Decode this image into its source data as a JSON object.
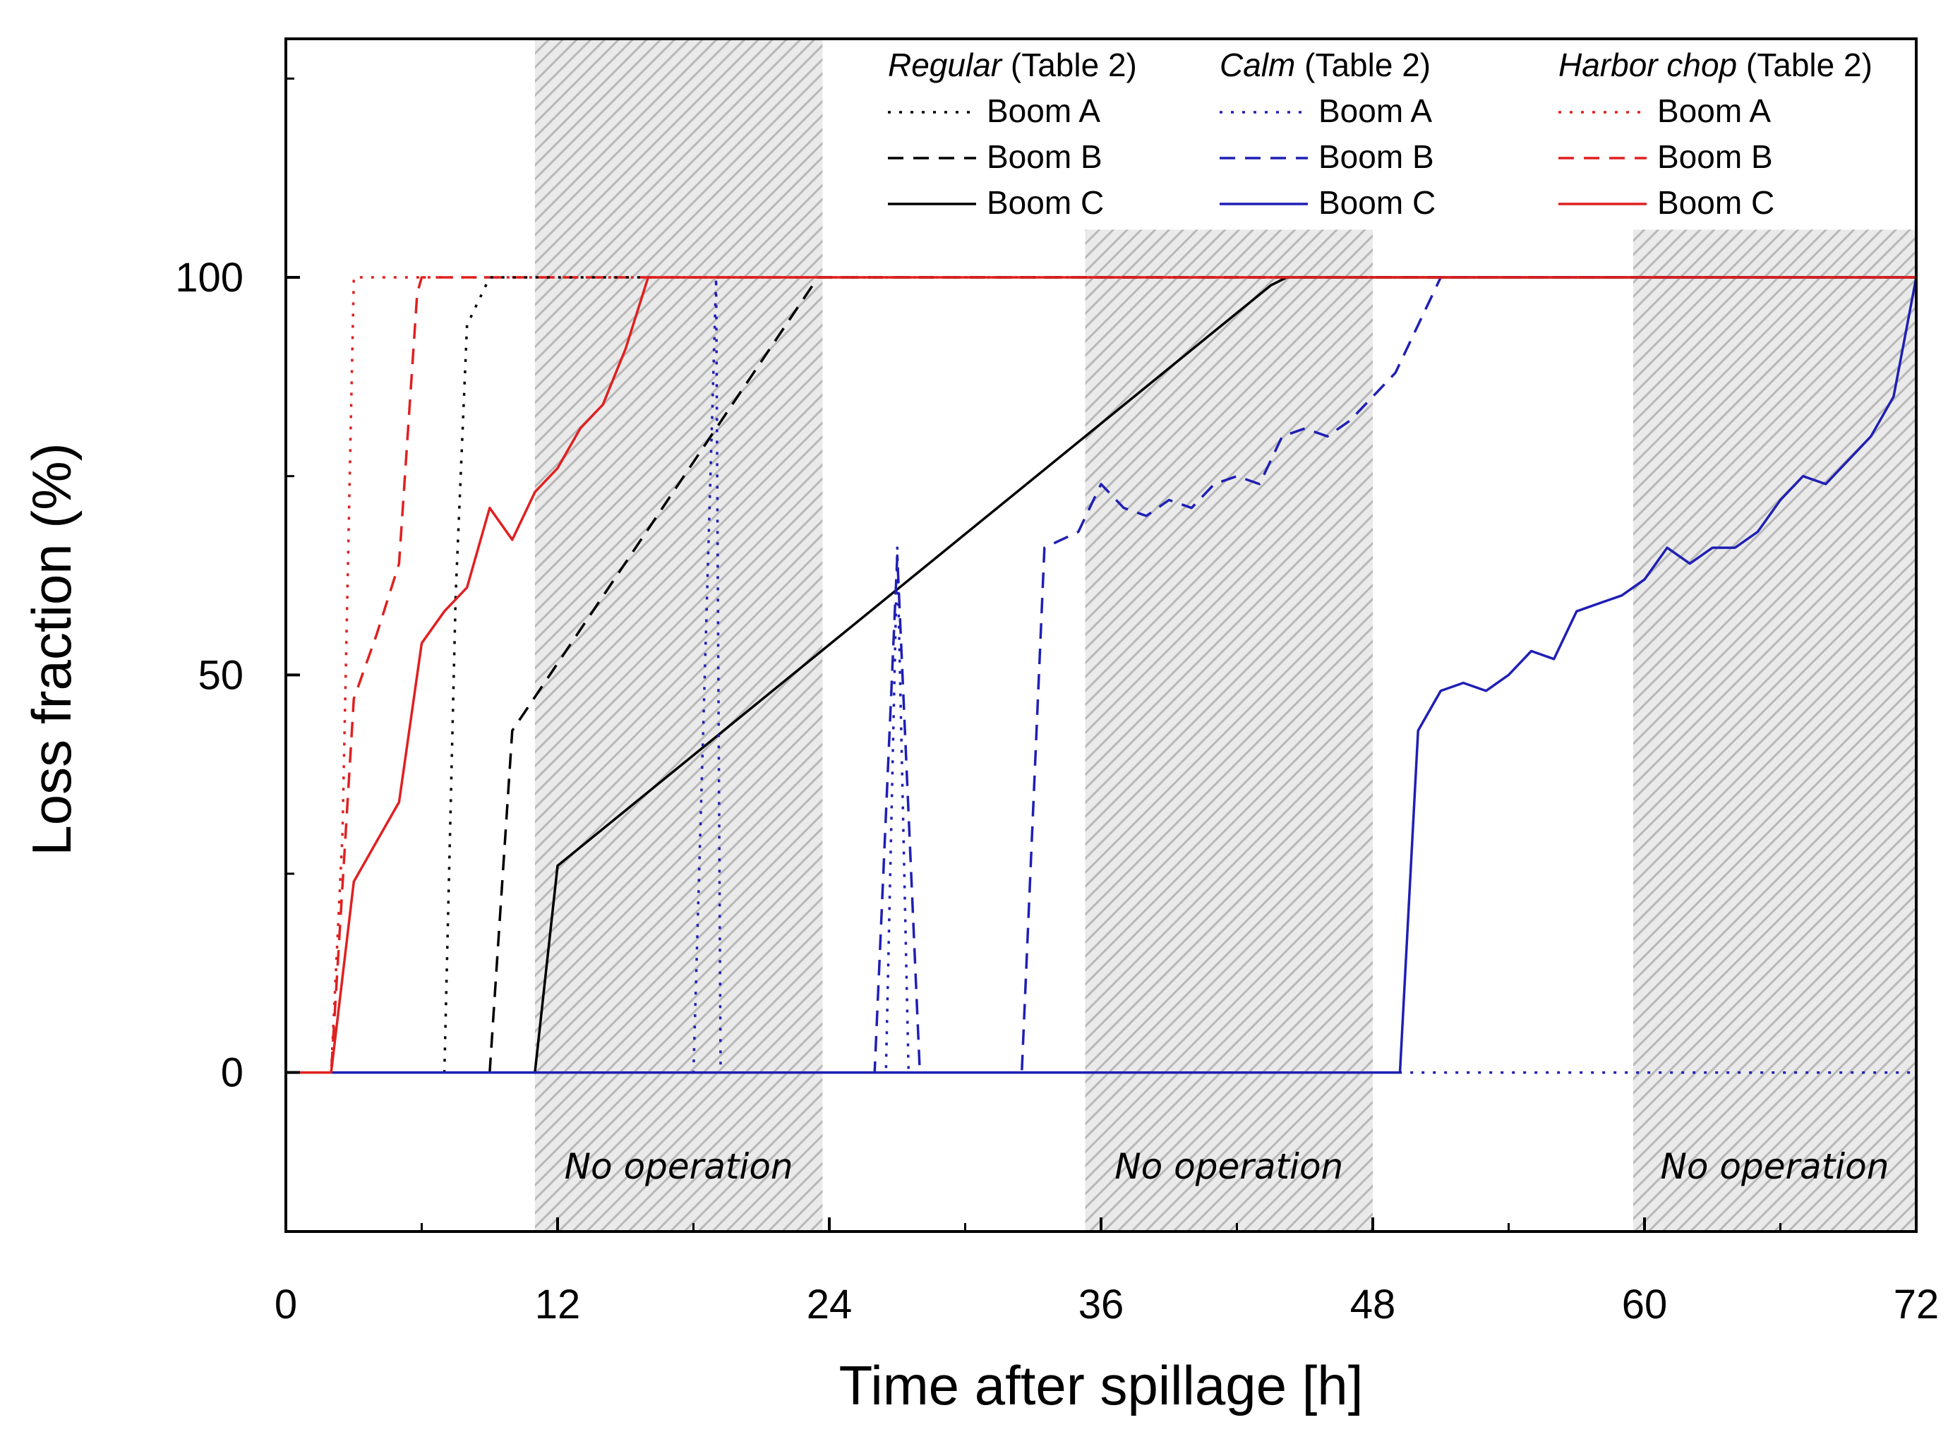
{
  "chart_data": {
    "type": "line",
    "xlabel": "Time after spillage [h]",
    "ylabel": "Loss fraction (%)",
    "xlim": [
      0,
      72
    ],
    "ylim": [
      -20,
      130
    ],
    "x_ticks": [
      0,
      12,
      24,
      36,
      48,
      60,
      72
    ],
    "y_ticks": [
      0,
      50,
      100
    ],
    "grid": false,
    "shaded_regions": [
      {
        "x_start": 11,
        "x_end": 23.7,
        "label": "No operation"
      },
      {
        "x_start": 35.3,
        "x_end": 48,
        "label": "No operation"
      },
      {
        "x_start": 59.5,
        "x_end": 72,
        "label": "No operation"
      }
    ],
    "legend": {
      "placement": "top-right",
      "groups": [
        {
          "name": "Regular",
          "suffix": " (Table 2)",
          "color": "#000000",
          "entries": [
            "Boom A",
            "Boom B",
            "Boom C"
          ]
        },
        {
          "name": "Calm",
          "suffix": " (Table 2)",
          "color": "#1f1fb4",
          "entries": [
            "Boom A",
            "Boom B",
            "Boom C"
          ]
        },
        {
          "name": "Harbor chop",
          "suffix": " (Table 2)",
          "color": "#e02020",
          "entries": [
            "Boom A",
            "Boom B",
            "Boom C"
          ]
        }
      ]
    },
    "series": [
      {
        "name": "Regular Boom A",
        "condition": "Regular",
        "boom": "A",
        "color": "#000000",
        "dash": "dot",
        "points": [
          [
            0,
            0
          ],
          [
            7,
            0
          ],
          [
            7.5,
            60
          ],
          [
            8,
            94
          ],
          [
            9,
            100
          ],
          [
            72,
            100
          ]
        ]
      },
      {
        "name": "Regular Boom B",
        "condition": "Regular",
        "boom": "B",
        "color": "#000000",
        "dash": "dash",
        "points": [
          [
            0,
            0
          ],
          [
            9,
            0
          ],
          [
            10,
            43
          ],
          [
            23.5,
            100
          ],
          [
            72,
            100
          ]
        ]
      },
      {
        "name": "Regular Boom C",
        "condition": "Regular",
        "boom": "C",
        "color": "#000000",
        "dash": "solid",
        "points": [
          [
            0,
            0
          ],
          [
            11,
            0
          ],
          [
            12,
            26
          ],
          [
            43.5,
            99
          ],
          [
            44.2,
            100
          ],
          [
            72,
            100
          ]
        ]
      },
      {
        "name": "Calm Boom A",
        "condition": "Calm",
        "boom": "A",
        "color": "#1f1fb4",
        "dash": "dot",
        "points": [
          [
            0,
            0
          ],
          [
            18,
            0
          ],
          [
            19,
            100
          ],
          [
            19.2,
            0
          ],
          [
            26.5,
            0
          ],
          [
            27,
            66
          ],
          [
            27.5,
            0
          ],
          [
            72,
            0
          ],
          [
            72,
            100
          ]
        ]
      },
      {
        "name": "Calm Boom B",
        "condition": "Calm",
        "boom": "B",
        "color": "#1f1fb4",
        "dash": "dash",
        "points": [
          [
            0,
            0
          ],
          [
            26,
            0
          ],
          [
            27,
            65
          ],
          [
            28,
            0
          ],
          [
            32.5,
            0
          ],
          [
            33.5,
            66
          ],
          [
            35,
            68
          ],
          [
            36,
            74
          ],
          [
            37,
            71
          ],
          [
            38,
            70
          ],
          [
            39,
            72
          ],
          [
            40,
            71
          ],
          [
            41,
            74
          ],
          [
            42,
            75
          ],
          [
            43,
            74
          ],
          [
            44,
            80
          ],
          [
            45,
            81
          ],
          [
            46,
            80
          ],
          [
            47,
            82
          ],
          [
            48,
            85
          ],
          [
            49,
            88
          ],
          [
            50,
            94
          ],
          [
            51,
            100
          ],
          [
            72,
            100
          ]
        ]
      },
      {
        "name": "Calm Boom C",
        "condition": "Calm",
        "boom": "C",
        "color": "#1f1fb4",
        "dash": "solid",
        "points": [
          [
            0,
            0
          ],
          [
            49.2,
            0
          ],
          [
            50,
            43
          ],
          [
            51,
            48
          ],
          [
            52,
            49
          ],
          [
            53,
            48
          ],
          [
            54,
            50
          ],
          [
            55,
            53
          ],
          [
            56,
            52
          ],
          [
            57,
            58
          ],
          [
            58,
            59
          ],
          [
            59,
            60
          ],
          [
            60,
            62
          ],
          [
            61,
            66
          ],
          [
            62,
            64
          ],
          [
            63,
            66
          ],
          [
            64,
            66
          ],
          [
            65,
            68
          ],
          [
            66,
            72
          ],
          [
            67,
            75
          ],
          [
            68,
            74
          ],
          [
            69,
            77
          ],
          [
            70,
            80
          ],
          [
            71,
            85
          ],
          [
            72,
            100
          ]
        ]
      },
      {
        "name": "Harbor chop Boom A",
        "condition": "Harbor chop",
        "boom": "A",
        "color": "#e02020",
        "dash": "dot",
        "points": [
          [
            0,
            0
          ],
          [
            2,
            0
          ],
          [
            2.5,
            30
          ],
          [
            3,
            100
          ],
          [
            72,
            100
          ]
        ]
      },
      {
        "name": "Harbor chop Boom B",
        "condition": "Harbor chop",
        "boom": "B",
        "color": "#e02020",
        "dash": "dash",
        "points": [
          [
            0,
            0
          ],
          [
            2,
            0
          ],
          [
            3,
            47
          ],
          [
            4,
            55
          ],
          [
            5,
            64
          ],
          [
            5.8,
            98
          ],
          [
            6,
            100
          ],
          [
            72,
            100
          ]
        ]
      },
      {
        "name": "Harbor chop Boom C",
        "condition": "Harbor chop",
        "boom": "C",
        "color": "#e02020",
        "dash": "solid",
        "points": [
          [
            0,
            0
          ],
          [
            2,
            0
          ],
          [
            3,
            24
          ],
          [
            4,
            29
          ],
          [
            5,
            34
          ],
          [
            6,
            54
          ],
          [
            7,
            58
          ],
          [
            8,
            61
          ],
          [
            9,
            71
          ],
          [
            10,
            67
          ],
          [
            11,
            73
          ],
          [
            12,
            76
          ],
          [
            13,
            81
          ],
          [
            14,
            84
          ],
          [
            15,
            91
          ],
          [
            16,
            100
          ],
          [
            72,
            100
          ]
        ]
      }
    ]
  }
}
